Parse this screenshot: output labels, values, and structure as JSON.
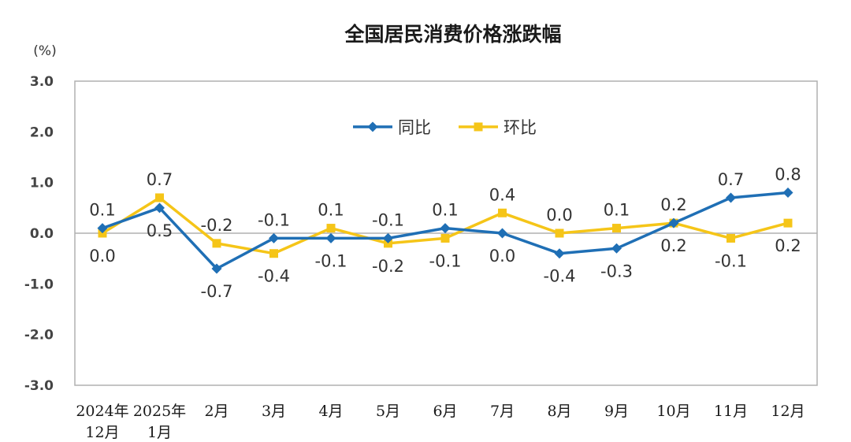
{
  "chart_data": {
    "type": "line",
    "title": "全国居民消费价格涨跌幅",
    "unit": "(%)",
    "ylim": [
      -3.0,
      3.0
    ],
    "yticks": [
      "3.0",
      "2.0",
      "1.0",
      "0.0",
      "-1.0",
      "-2.0",
      "-3.0"
    ],
    "ytick_values": [
      3,
      2,
      1,
      0,
      -1,
      -2,
      -3
    ],
    "categories": [
      [
        "2024年",
        "12月"
      ],
      [
        "2025年",
        "1月"
      ],
      [
        "2月"
      ],
      [
        "3月"
      ],
      [
        "4月"
      ],
      [
        "5月"
      ],
      [
        "6月"
      ],
      [
        "7月"
      ],
      [
        "8月"
      ],
      [
        "9月"
      ],
      [
        "10月"
      ],
      [
        "11月"
      ],
      [
        "12月"
      ]
    ],
    "legend_position": "top-center",
    "grid": false,
    "series": [
      {
        "name": "同比",
        "color": "#1f6fb5",
        "marker": "diamond",
        "values": [
          0.1,
          0.5,
          -0.7,
          -0.1,
          -0.1,
          -0.1,
          0.1,
          0.0,
          -0.4,
          -0.3,
          0.2,
          0.7,
          0.8
        ],
        "labels": [
          "0.1",
          "0.5",
          "-0.7",
          "-0.1",
          "-0.1",
          "-0.1",
          "0.1",
          "0.0",
          "-0.4",
          "-0.3",
          "0.2",
          "0.7",
          "0.8"
        ],
        "label_side": [
          "above",
          "below",
          "below",
          "above",
          "below",
          "above",
          "above",
          "below",
          "below",
          "below",
          "below",
          "above",
          "above"
        ]
      },
      {
        "name": "环比",
        "color": "#f5c518",
        "marker": "square",
        "values": [
          0.0,
          0.7,
          -0.2,
          -0.4,
          0.1,
          -0.2,
          -0.1,
          0.4,
          0.0,
          0.1,
          0.2,
          -0.1,
          0.2
        ],
        "labels": [
          "0.0",
          "0.7",
          "-0.2",
          "-0.4",
          "0.1",
          "-0.2",
          "-0.1",
          "0.4",
          "0.0",
          "0.1",
          "0.2",
          "-0.1",
          "0.2"
        ],
        "label_side": [
          "below",
          "above",
          "above",
          "below",
          "above",
          "below",
          "below",
          "above",
          "above",
          "above",
          "above",
          "below",
          "below"
        ]
      }
    ]
  }
}
